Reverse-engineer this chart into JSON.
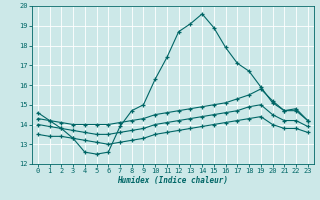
{
  "xlabel": "Humidex (Indice chaleur)",
  "xlim": [
    -0.5,
    23.5
  ],
  "ylim": [
    12,
    20
  ],
  "yticks": [
    12,
    13,
    14,
    15,
    16,
    17,
    18,
    19,
    20
  ],
  "xticks": [
    0,
    1,
    2,
    3,
    4,
    5,
    6,
    7,
    8,
    9,
    10,
    11,
    12,
    13,
    14,
    15,
    16,
    17,
    18,
    19,
    20,
    21,
    22,
    23
  ],
  "bg_color": "#cce8e8",
  "grid_color": "#ffffff",
  "line_color": "#006666",
  "line1_y": [
    14.6,
    14.2,
    13.8,
    13.3,
    12.6,
    12.5,
    12.6,
    13.9,
    14.7,
    15.0,
    16.3,
    17.4,
    18.7,
    19.1,
    19.6,
    18.9,
    17.9,
    17.1,
    16.7,
    15.9,
    15.1,
    14.7,
    14.8,
    14.2
  ],
  "line2_y": [
    14.3,
    14.2,
    14.1,
    14.0,
    14.0,
    14.0,
    14.0,
    14.1,
    14.2,
    14.3,
    14.5,
    14.6,
    14.7,
    14.8,
    14.9,
    15.0,
    15.1,
    15.3,
    15.5,
    15.8,
    15.2,
    14.7,
    14.7,
    14.2
  ],
  "line3_y": [
    14.0,
    13.9,
    13.8,
    13.7,
    13.6,
    13.5,
    13.5,
    13.6,
    13.7,
    13.8,
    14.0,
    14.1,
    14.2,
    14.3,
    14.4,
    14.5,
    14.6,
    14.7,
    14.9,
    15.0,
    14.5,
    14.2,
    14.2,
    13.9
  ],
  "line4_y": [
    13.5,
    13.4,
    13.4,
    13.3,
    13.2,
    13.1,
    13.0,
    13.1,
    13.2,
    13.3,
    13.5,
    13.6,
    13.7,
    13.8,
    13.9,
    14.0,
    14.1,
    14.2,
    14.3,
    14.4,
    14.0,
    13.8,
    13.8,
    13.6
  ]
}
